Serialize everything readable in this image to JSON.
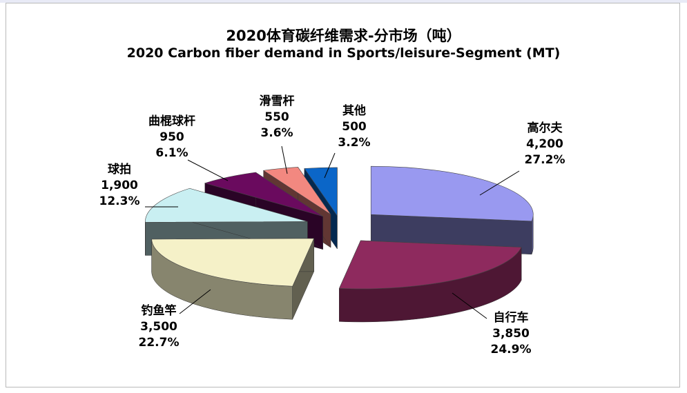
{
  "chart_data": {
    "type": "pie",
    "title": "2020体育碳纤维需求-分市场（吨）",
    "subtitle": "2020 Carbon fiber demand in Sports/leisure-Segment (MT)",
    "slices": [
      {
        "name": "高尔夫",
        "value": 4200,
        "value_label": "4,200",
        "percent": "27.2%",
        "color": "#9999f0"
      },
      {
        "name": "自行车",
        "value": 3850,
        "value_label": "3,850",
        "percent": "24.9%",
        "color": "#8e2a5e"
      },
      {
        "name": "钓鱼竿",
        "value": 3500,
        "value_label": "3,500",
        "percent": "22.7%",
        "color": "#f5f1c8"
      },
      {
        "name": "球拍",
        "value": 1900,
        "value_label": "1,900",
        "percent": "12.3%",
        "color": "#c9eff2"
      },
      {
        "name": "曲棍球杆",
        "value": 950,
        "value_label": "950",
        "percent": "6.1%",
        "color": "#6a0a5e"
      },
      {
        "name": "滑雪杆",
        "value": 550,
        "value_label": "550",
        "percent": "3.6%",
        "color": "#f28880"
      },
      {
        "name": "其他",
        "value": 500,
        "value_label": "500",
        "percent": "3.2%",
        "color": "#0b66c8"
      }
    ],
    "exploded": true,
    "legend": "none"
  }
}
